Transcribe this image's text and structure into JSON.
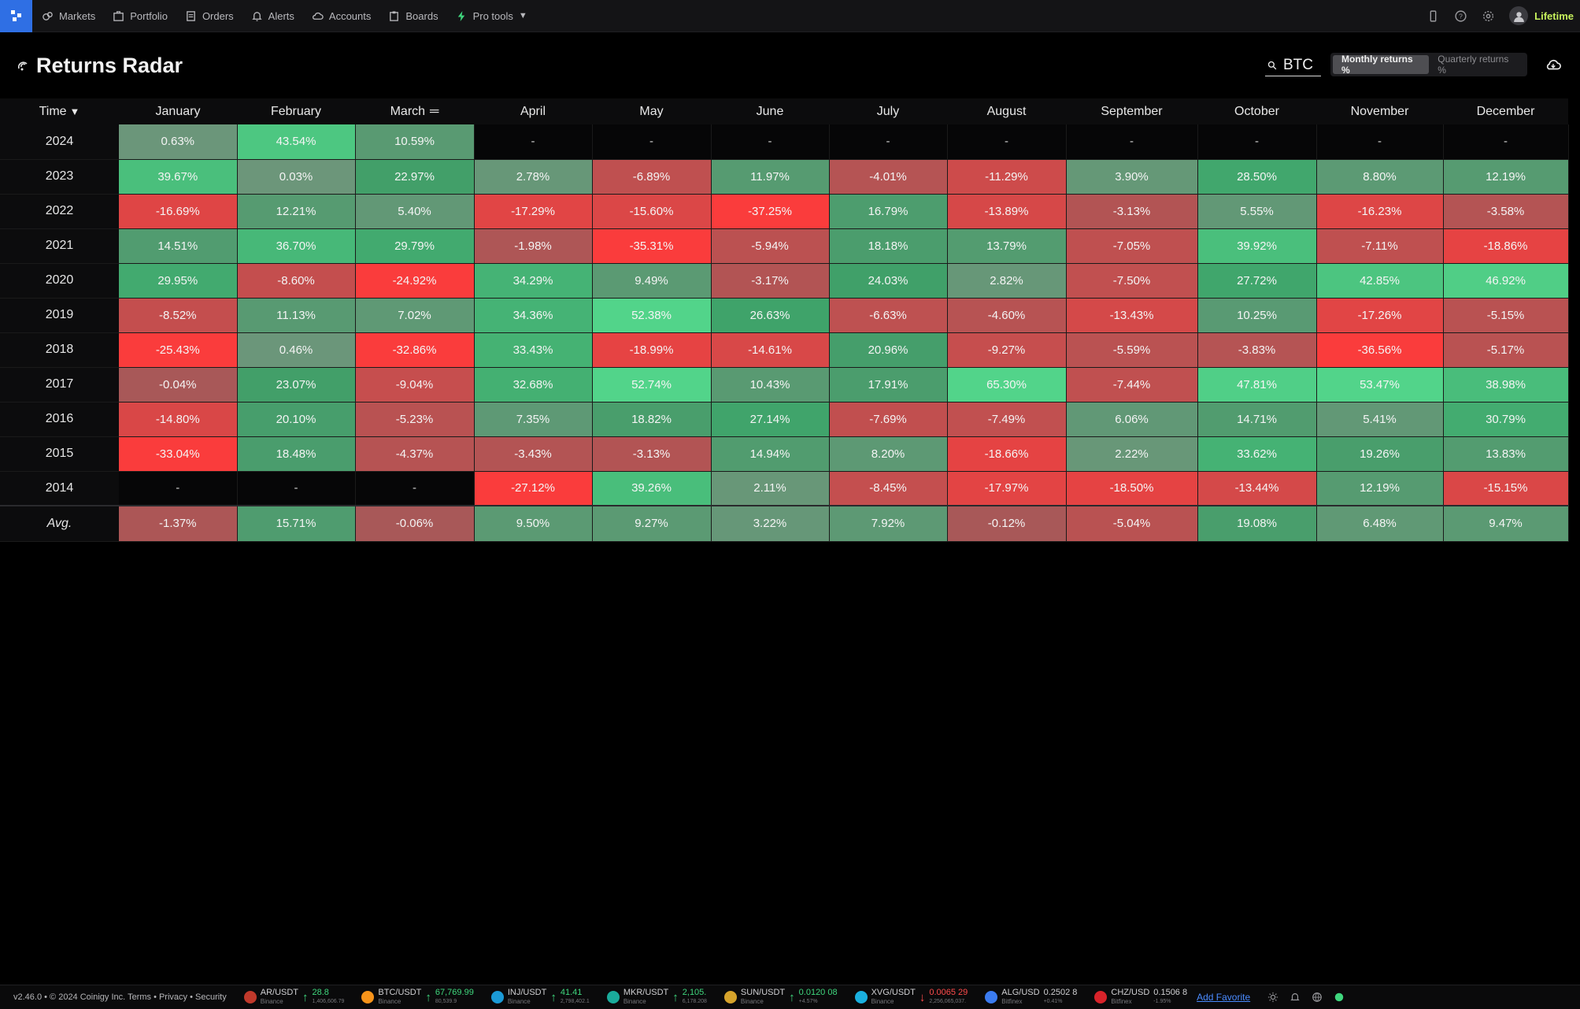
{
  "nav": {
    "items": [
      "Markets",
      "Portfolio",
      "Orders",
      "Alerts",
      "Accounts",
      "Boards",
      "Pro tools"
    ],
    "lifetime": "Lifetime"
  },
  "page": {
    "title": "Returns Radar",
    "search_value": "BTC",
    "toggle": [
      "Monthly returns %",
      "Quarterly returns %"
    ],
    "active_toggle": "Monthly returns %"
  },
  "table": {
    "time_header": "Time",
    "months": [
      "January",
      "February",
      "March",
      "April",
      "May",
      "June",
      "July",
      "August",
      "September",
      "October",
      "November",
      "December"
    ],
    "rows": [
      {
        "year": "2024",
        "values": [
          "0.63%",
          "43.54%",
          "10.59%",
          "-",
          "-",
          "-",
          "-",
          "-",
          "-",
          "-",
          "-",
          "-"
        ]
      },
      {
        "year": "2023",
        "values": [
          "39.67%",
          "0.03%",
          "22.97%",
          "2.78%",
          "-6.89%",
          "11.97%",
          "-4.01%",
          "-11.29%",
          "3.90%",
          "28.50%",
          "8.80%",
          "12.19%"
        ]
      },
      {
        "year": "2022",
        "values": [
          "-16.69%",
          "12.21%",
          "5.40%",
          "-17.29%",
          "-15.60%",
          "-37.25%",
          "16.79%",
          "-13.89%",
          "-3.13%",
          "5.55%",
          "-16.23%",
          "-3.58%"
        ]
      },
      {
        "year": "2021",
        "values": [
          "14.51%",
          "36.70%",
          "29.79%",
          "-1.98%",
          "-35.31%",
          "-5.94%",
          "18.18%",
          "13.79%",
          "-7.05%",
          "39.92%",
          "-7.11%",
          "-18.86%"
        ]
      },
      {
        "year": "2020",
        "values": [
          "29.95%",
          "-8.60%",
          "-24.92%",
          "34.29%",
          "9.49%",
          "-3.17%",
          "24.03%",
          "2.82%",
          "-7.50%",
          "27.72%",
          "42.85%",
          "46.92%"
        ]
      },
      {
        "year": "2019",
        "values": [
          "-8.52%",
          "11.13%",
          "7.02%",
          "34.36%",
          "52.38%",
          "26.63%",
          "-6.63%",
          "-4.60%",
          "-13.43%",
          "10.25%",
          "-17.26%",
          "-5.15%"
        ]
      },
      {
        "year": "2018",
        "values": [
          "-25.43%",
          "0.46%",
          "-32.86%",
          "33.43%",
          "-18.99%",
          "-14.61%",
          "20.96%",
          "-9.27%",
          "-5.59%",
          "-3.83%",
          "-36.56%",
          "-5.17%"
        ]
      },
      {
        "year": "2017",
        "values": [
          "-0.04%",
          "23.07%",
          "-9.04%",
          "32.68%",
          "52.74%",
          "10.43%",
          "17.91%",
          "65.30%",
          "-7.44%",
          "47.81%",
          "53.47%",
          "38.98%"
        ]
      },
      {
        "year": "2016",
        "values": [
          "-14.80%",
          "20.10%",
          "-5.23%",
          "7.35%",
          "18.82%",
          "27.14%",
          "-7.69%",
          "-7.49%",
          "6.06%",
          "14.71%",
          "5.41%",
          "30.79%"
        ]
      },
      {
        "year": "2015",
        "values": [
          "-33.04%",
          "18.48%",
          "-4.37%",
          "-3.43%",
          "-3.13%",
          "14.94%",
          "8.20%",
          "-18.66%",
          "2.22%",
          "33.62%",
          "19.26%",
          "13.83%"
        ]
      },
      {
        "year": "2014",
        "values": [
          "-",
          "-",
          "-",
          "-27.12%",
          "39.26%",
          "2.11%",
          "-8.45%",
          "-17.97%",
          "-18.50%",
          "-13.44%",
          "12.19%",
          "-15.15%"
        ]
      }
    ],
    "avg": {
      "label": "Avg.",
      "values": [
        "-1.37%",
        "15.71%",
        "-0.06%",
        "9.50%",
        "9.27%",
        "3.22%",
        "7.92%",
        "-0.12%",
        "-5.04%",
        "19.08%",
        "6.48%",
        "9.47%"
      ]
    }
  },
  "footer": {
    "meta": "v2.46.0 • © 2024 Coinigy Inc. Terms • Privacy • Security",
    "tickers": [
      {
        "pair": "AR/USDT",
        "exchange": "Binance",
        "price": "28.8",
        "sub": "1,406,606.79",
        "dir": "up",
        "color": "#c0392b"
      },
      {
        "pair": "BTC/USDT",
        "exchange": "Binance",
        "price": "67,769.99",
        "sub": "80,539.9",
        "dir": "up",
        "color": "#f7931a"
      },
      {
        "pair": "INJ/USDT",
        "exchange": "Binance",
        "price": "41.41",
        "sub": "2,798,402.1",
        "dir": "up",
        "color": "#1b9ad6"
      },
      {
        "pair": "MKR/USDT",
        "exchange": "Binance",
        "price": "2,105.",
        "sub": "6,178.208",
        "dir": "up",
        "color": "#1aab9b"
      },
      {
        "pair": "SUN/USDT",
        "exchange": "Binance",
        "price": "0.0120 08",
        "sub": "+4.57%",
        "dir": "up",
        "color": "#d6a32b"
      },
      {
        "pair": "XVG/USDT",
        "exchange": "Binance",
        "price": "0.0065 29",
        "sub": "2,256,065,037.",
        "dir": "down",
        "color": "#1ab0e0"
      },
      {
        "pair": "ALG/USD",
        "exchange": "Bitfinex",
        "price": "0.2502 8",
        "sub": "+0.41%",
        "dir": "neutral",
        "color": "#3b7bf0"
      },
      {
        "pair": "CHZ/USD",
        "exchange": "Bitfinex",
        "price": "0.1506 8",
        "sub": "-1.95%",
        "dir": "neutral",
        "color": "#d8232a"
      }
    ],
    "add_favorite": "Add Favorite"
  }
}
